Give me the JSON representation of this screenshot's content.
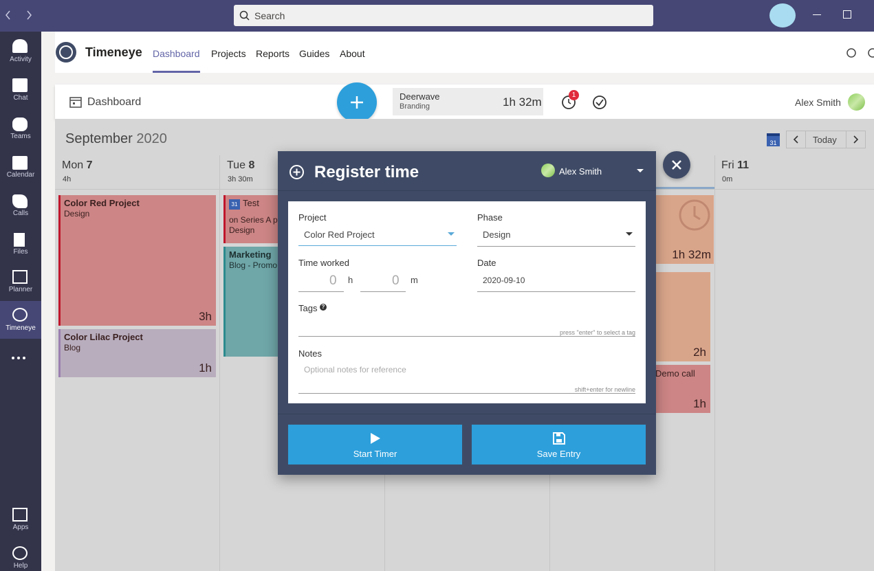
{
  "titlebar": {
    "search": "Search"
  },
  "rail": {
    "items": [
      "Activity",
      "Chat",
      "Teams",
      "Calendar",
      "Calls",
      "Files",
      "Planner",
      "Timeneye"
    ],
    "bottom": [
      "Apps",
      "Help"
    ]
  },
  "app": {
    "name": "Timeneye",
    "nav": [
      "Dashboard",
      "Projects",
      "Reports",
      "Guides",
      "About"
    ]
  },
  "toolbar": {
    "title": "Dashboard",
    "timer": {
      "project": "Deerwave",
      "phase": "Branding",
      "elapsed": "1h 32m"
    },
    "badge": 1,
    "user": "Alex Smith"
  },
  "calendar": {
    "month": "September",
    "year": "2020",
    "icon_day": "31",
    "today": "Today",
    "days": [
      {
        "name": "Mon",
        "date": "7",
        "total": "4h"
      },
      {
        "name": "Tue",
        "date": "8",
        "total": "3h 30m"
      },
      {
        "name": "Fri",
        "date": "11",
        "total": "0m"
      }
    ],
    "events": [
      {
        "title": "Color Red Project",
        "subtitle": "Design",
        "duration": "3h"
      },
      {
        "title": "Color Lilac Project",
        "subtitle": "Blog",
        "duration": "1h"
      },
      {
        "icon_day": "31",
        "title": "Test",
        "subtitle": "on Series A p",
        "phase": "Design"
      },
      {
        "title": "Marketing",
        "subtitle": "Blog - Promo"
      },
      {
        "duration": "1h 32m"
      },
      {
        "duration": "2h"
      },
      {
        "title": "Demo call",
        "duration": "1h"
      }
    ]
  },
  "modal": {
    "title": "Register time",
    "user": "Alex Smith",
    "project_label": "Project",
    "project": "Color Red Project",
    "phase_label": "Phase",
    "phase": "Design",
    "time_label": "Time worked",
    "hours": 0,
    "hours_unit": "h",
    "minutes": 0,
    "minutes_unit": "m",
    "date_label": "Date",
    "date": "2020-09-10",
    "tags_label": "Tags",
    "tags_hint": "press \"enter\" to select a tag",
    "notes_label": "Notes",
    "notes_placeholder": "Optional notes for reference",
    "notes_hint": "shift+enter for newline",
    "start": "Start Timer",
    "save": "Save Entry"
  }
}
